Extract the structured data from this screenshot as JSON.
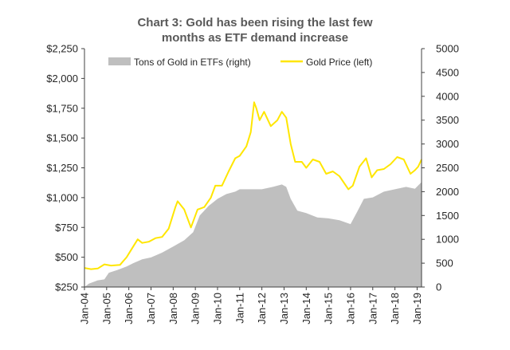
{
  "chart_data": {
    "type": "line",
    "title_lines": [
      "Chart 3: Gold has been rising the last few",
      "months as ETF demand increase"
    ],
    "legend_position": "top",
    "grid": false,
    "x_tick_labels": [
      "Jan-04",
      "Jan-05",
      "Jan-06",
      "Jan-07",
      "Jan-08",
      "Jan-09",
      "Jan-10",
      "Jan-11",
      "Jan-12",
      "Jan-13",
      "Jan-14",
      "Jan-15",
      "Jan-16",
      "Jan-17",
      "Jan-18",
      "Jan-19"
    ],
    "x_range": [
      2004.0,
      2019.2
    ],
    "left_axis": {
      "ylim": [
        250,
        2250
      ],
      "tick_labels": [
        "$250",
        "$500",
        "$750",
        "$1,000",
        "$1,250",
        "$1,500",
        "$1,750",
        "$2,000",
        "$2,250"
      ],
      "tick_values": [
        250,
        500,
        750,
        1000,
        1250,
        1500,
        1750,
        2000,
        2250
      ]
    },
    "right_axis": {
      "ylim": [
        0,
        5000
      ],
      "tick_labels": [
        "0",
        "500",
        "1000",
        "1500",
        "2000",
        "2500",
        "3000",
        "3500",
        "4000",
        "4500",
        "5000"
      ],
      "tick_values": [
        0,
        500,
        1000,
        1500,
        2000,
        2500,
        3000,
        3500,
        4000,
        4500,
        5000
      ]
    },
    "series": [
      {
        "name": "Tons of Gold in ETFs (right)",
        "type": "area",
        "axis": "right",
        "color": "#bfbfbf",
        "x": [
          2004.0,
          2004.2,
          2004.6,
          2004.9,
          2005.1,
          2005.5,
          2005.9,
          2006.2,
          2006.6,
          2007.0,
          2007.5,
          2008.0,
          2008.5,
          2008.9,
          2009.2,
          2009.6,
          2010.0,
          2010.4,
          2010.8,
          2011.0,
          2011.5,
          2012.0,
          2012.5,
          2012.9,
          2013.1,
          2013.3,
          2013.6,
          2014.0,
          2014.5,
          2015.0,
          2015.5,
          2016.0,
          2016.3,
          2016.6,
          2017.0,
          2017.5,
          2018.0,
          2018.5,
          2018.9,
          2019.2
        ],
        "values": [
          0,
          70,
          140,
          160,
          300,
          360,
          430,
          500,
          580,
          620,
          720,
          850,
          980,
          1150,
          1500,
          1700,
          1850,
          1950,
          2000,
          2050,
          2050,
          2050,
          2100,
          2150,
          2100,
          1850,
          1600,
          1550,
          1460,
          1440,
          1400,
          1320,
          1580,
          1850,
          1880,
          2000,
          2050,
          2100,
          2060,
          2200
        ]
      },
      {
        "name": "Gold Price (left)",
        "type": "line",
        "axis": "left",
        "color": "#ffe600",
        "x": [
          2004.0,
          2004.3,
          2004.6,
          2004.9,
          2005.2,
          2005.6,
          2005.9,
          2006.1,
          2006.4,
          2006.6,
          2006.9,
          2007.2,
          2007.5,
          2007.8,
          2008.1,
          2008.2,
          2008.5,
          2008.8,
          2008.9,
          2009.1,
          2009.4,
          2009.7,
          2009.9,
          2010.2,
          2010.5,
          2010.8,
          2011.0,
          2011.3,
          2011.5,
          2011.65,
          2011.75,
          2011.9,
          2012.1,
          2012.4,
          2012.7,
          2012.9,
          2013.1,
          2013.3,
          2013.5,
          2013.8,
          2014.0,
          2014.3,
          2014.6,
          2014.9,
          2015.2,
          2015.5,
          2015.9,
          2016.1,
          2016.4,
          2016.7,
          2016.95,
          2017.2,
          2017.5,
          2017.8,
          2018.1,
          2018.4,
          2018.7,
          2018.9,
          2019.05,
          2019.2
        ],
        "values": [
          410,
          400,
          405,
          440,
          430,
          435,
          500,
          560,
          650,
          620,
          630,
          660,
          670,
          740,
          920,
          970,
          900,
          750,
          800,
          900,
          920,
          1000,
          1100,
          1100,
          1220,
          1330,
          1350,
          1430,
          1550,
          1800,
          1750,
          1650,
          1720,
          1600,
          1650,
          1720,
          1670,
          1450,
          1300,
          1300,
          1250,
          1320,
          1300,
          1200,
          1220,
          1180,
          1070,
          1100,
          1260,
          1330,
          1170,
          1230,
          1240,
          1280,
          1340,
          1320,
          1200,
          1230,
          1260,
          1320
        ]
      }
    ]
  }
}
